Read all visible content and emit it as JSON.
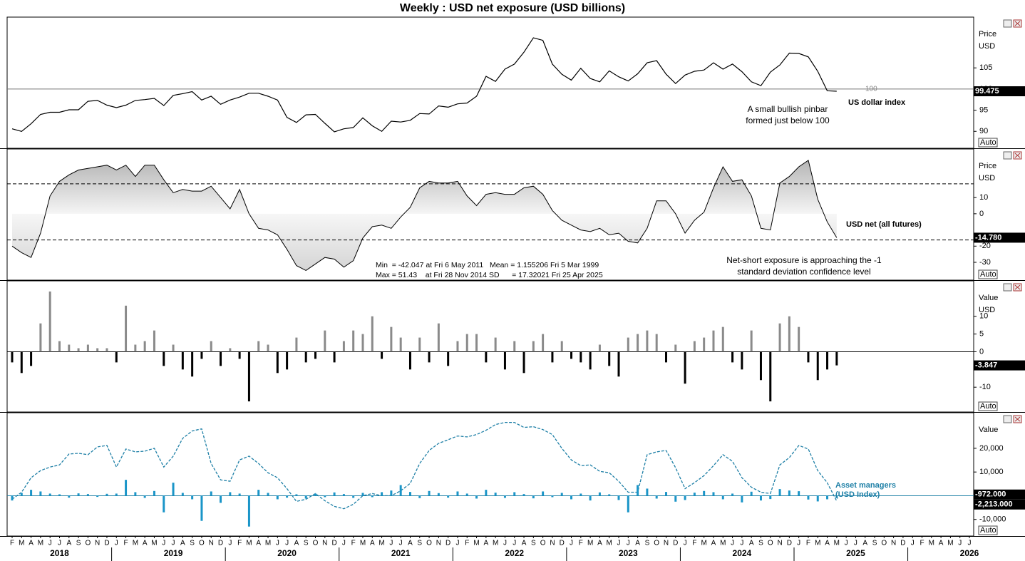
{
  "title": "Weekly : USD net exposure (USD billions)",
  "x_axis": {
    "xlim": [
      "2018-02",
      "2026-07"
    ],
    "x": [
      "2018-02",
      "2018-03",
      "2018-04",
      "2018-05",
      "2018-06",
      "2018-07",
      "2018-08",
      "2018-09",
      "2018-10",
      "2018-11",
      "2018-12",
      "2019-01",
      "2019-02",
      "2019-03",
      "2019-04",
      "2019-05",
      "2019-06",
      "2019-07",
      "2019-08",
      "2019-09",
      "2019-10",
      "2019-11",
      "2019-12",
      "2020-01",
      "2020-02",
      "2020-03",
      "2020-04",
      "2020-05",
      "2020-06",
      "2020-07",
      "2020-08",
      "2020-09",
      "2020-10",
      "2020-11",
      "2020-12",
      "2021-01",
      "2021-02",
      "2021-03",
      "2021-04",
      "2021-05",
      "2021-06",
      "2021-07",
      "2021-08",
      "2021-09",
      "2021-10",
      "2021-11",
      "2021-12",
      "2022-01",
      "2022-02",
      "2022-03",
      "2022-04",
      "2022-05",
      "2022-06",
      "2022-07",
      "2022-08",
      "2022-09",
      "2022-10",
      "2022-11",
      "2022-12",
      "2023-01",
      "2023-02",
      "2023-03",
      "2023-04",
      "2023-05",
      "2023-06",
      "2023-07",
      "2023-08",
      "2023-09",
      "2023-10",
      "2023-11",
      "2023-12",
      "2024-01",
      "2024-02",
      "2024-03",
      "2024-04",
      "2024-05",
      "2024-06",
      "2024-07",
      "2024-08",
      "2024-09",
      "2024-10",
      "2024-11",
      "2024-12",
      "2025-01",
      "2025-02",
      "2025-03",
      "2025-04",
      "2025-05"
    ],
    "xticks": [
      {
        "value": "2018-02",
        "label": "F"
      },
      {
        "value": "2018-03",
        "label": "M"
      },
      {
        "value": "2018-04",
        "label": "A"
      },
      {
        "value": "2018-05",
        "label": "M"
      },
      {
        "value": "2018-06",
        "label": "J"
      },
      {
        "value": "2018-07",
        "label": "J"
      },
      {
        "value": "2018-08",
        "label": "A"
      },
      {
        "value": "2018-09",
        "label": "S"
      },
      {
        "value": "2018-10",
        "label": "O"
      },
      {
        "value": "2018-11",
        "label": "N"
      },
      {
        "value": "2018-12",
        "label": "D"
      },
      {
        "value": "2019-01",
        "label": "J"
      },
      {
        "value": "2019-02",
        "label": "F"
      },
      {
        "value": "2019-03",
        "label": "M"
      },
      {
        "value": "2019-04",
        "label": "A"
      },
      {
        "value": "2019-05",
        "label": "M"
      },
      {
        "value": "2019-06",
        "label": "J"
      },
      {
        "value": "2019-07",
        "label": "J"
      },
      {
        "value": "2019-08",
        "label": "A"
      },
      {
        "value": "2019-09",
        "label": "S"
      },
      {
        "value": "2019-10",
        "label": "O"
      },
      {
        "value": "2019-11",
        "label": "N"
      },
      {
        "value": "2019-12",
        "label": "D"
      },
      {
        "value": "2020-01",
        "label": "J"
      },
      {
        "value": "2020-02",
        "label": "F"
      },
      {
        "value": "2020-03",
        "label": "M"
      },
      {
        "value": "2020-04",
        "label": "A"
      },
      {
        "value": "2020-05",
        "label": "M"
      },
      {
        "value": "2020-06",
        "label": "J"
      },
      {
        "value": "2020-07",
        "label": "J"
      },
      {
        "value": "2020-08",
        "label": "A"
      },
      {
        "value": "2020-09",
        "label": "S"
      },
      {
        "value": "2020-10",
        "label": "O"
      },
      {
        "value": "2020-11",
        "label": "N"
      },
      {
        "value": "2020-12",
        "label": "D"
      },
      {
        "value": "2021-01",
        "label": "J"
      },
      {
        "value": "2021-02",
        "label": "F"
      },
      {
        "value": "2021-03",
        "label": "M"
      },
      {
        "value": "2021-04",
        "label": "A"
      },
      {
        "value": "2021-05",
        "label": "M"
      },
      {
        "value": "2021-06",
        "label": "J"
      },
      {
        "value": "2021-07",
        "label": "J"
      },
      {
        "value": "2021-08",
        "label": "A"
      },
      {
        "value": "2021-09",
        "label": "S"
      },
      {
        "value": "2021-10",
        "label": "O"
      },
      {
        "value": "2021-11",
        "label": "N"
      },
      {
        "value": "2021-12",
        "label": "D"
      },
      {
        "value": "2022-01",
        "label": "J"
      },
      {
        "value": "2022-02",
        "label": "F"
      },
      {
        "value": "2022-03",
        "label": "M"
      },
      {
        "value": "2022-04",
        "label": "A"
      },
      {
        "value": "2022-05",
        "label": "M"
      },
      {
        "value": "2022-06",
        "label": "J"
      },
      {
        "value": "2022-07",
        "label": "J"
      },
      {
        "value": "2022-08",
        "label": "A"
      },
      {
        "value": "2022-09",
        "label": "S"
      },
      {
        "value": "2022-10",
        "label": "O"
      },
      {
        "value": "2022-11",
        "label": "N"
      },
      {
        "value": "2022-12",
        "label": "D"
      },
      {
        "value": "2023-01",
        "label": "J"
      },
      {
        "value": "2023-02",
        "label": "F"
      },
      {
        "value": "2023-03",
        "label": "M"
      },
      {
        "value": "2023-04",
        "label": "A"
      },
      {
        "value": "2023-05",
        "label": "M"
      },
      {
        "value": "2023-06",
        "label": "J"
      },
      {
        "value": "2023-07",
        "label": "J"
      },
      {
        "value": "2023-08",
        "label": "A"
      },
      {
        "value": "2023-09",
        "label": "S"
      },
      {
        "value": "2023-10",
        "label": "O"
      },
      {
        "value": "2023-11",
        "label": "N"
      },
      {
        "value": "2023-12",
        "label": "D"
      },
      {
        "value": "2024-01",
        "label": "J"
      },
      {
        "value": "2024-02",
        "label": "F"
      },
      {
        "value": "2024-03",
        "label": "M"
      },
      {
        "value": "2024-04",
        "label": "A"
      },
      {
        "value": "2024-05",
        "label": "M"
      },
      {
        "value": "2024-06",
        "label": "J"
      },
      {
        "value": "2024-07",
        "label": "J"
      },
      {
        "value": "2024-08",
        "label": "A"
      },
      {
        "value": "2024-09",
        "label": "S"
      },
      {
        "value": "2024-10",
        "label": "O"
      },
      {
        "value": "2024-11",
        "label": "N"
      },
      {
        "value": "2024-12",
        "label": "D"
      },
      {
        "value": "2025-01",
        "label": "J"
      },
      {
        "value": "2025-02",
        "label": "F"
      },
      {
        "value": "2025-03",
        "label": "M"
      },
      {
        "value": "2025-04",
        "label": "A"
      },
      {
        "value": "2025-05",
        "label": "M"
      },
      {
        "value": "2025-06",
        "label": "J"
      },
      {
        "value": "2025-07",
        "label": "J"
      },
      {
        "value": "2025-08",
        "label": "A"
      },
      {
        "value": "2025-09",
        "label": "S"
      },
      {
        "value": "2025-10",
        "label": "O"
      },
      {
        "value": "2025-11",
        "label": "N"
      },
      {
        "value": "2025-12",
        "label": "D"
      },
      {
        "value": "2026-01",
        "label": "J"
      },
      {
        "value": "2026-02",
        "label": "F"
      },
      {
        "value": "2026-03",
        "label": "M"
      },
      {
        "value": "2026-04",
        "label": "A"
      },
      {
        "value": "2026-05",
        "label": "M"
      },
      {
        "value": "2026-06",
        "label": "J"
      },
      {
        "value": "2026-07",
        "label": "J"
      }
    ],
    "years": [
      "2018",
      "2019",
      "2020",
      "2021",
      "2022",
      "2023",
      "2024",
      "2025",
      "2026"
    ]
  },
  "chart_data": [
    {
      "type": "line",
      "name": "US dollar index",
      "color": "#000000",
      "axis_header": [
        "Price",
        "USD"
      ],
      "auto_button": "Auto",
      "ylim": [
        86,
        117
      ],
      "yticks": [
        90,
        95,
        100,
        105
      ],
      "reference_line": 100,
      "annotation": "A small bullish pinbar formed just below 100",
      "values": [
        90.6,
        90.0,
        91.8,
        94.0,
        94.5,
        94.5,
        95.1,
        95.1,
        97.1,
        97.3,
        96.2,
        95.6,
        96.2,
        97.3,
        97.5,
        97.8,
        96.1,
        98.5,
        98.9,
        99.4,
        97.4,
        98.3,
        96.4,
        97.4,
        98.1,
        99.0,
        99.0,
        98.3,
        97.4,
        93.3,
        92.1,
        93.9,
        94.0,
        91.9,
        89.9,
        90.6,
        90.9,
        93.2,
        91.3,
        90.0,
        92.4,
        92.2,
        92.6,
        94.2,
        94.1,
        96.0,
        95.7,
        96.5,
        96.7,
        98.3,
        103.0,
        101.8,
        104.7,
        105.9,
        108.7,
        112.1,
        111.5,
        105.9,
        103.5,
        102.1,
        104.9,
        102.5,
        101.7,
        104.3,
        102.9,
        101.9,
        103.6,
        106.2,
        106.7,
        103.5,
        101.3,
        103.3,
        104.2,
        104.5,
        106.2,
        104.7,
        105.9,
        104.1,
        101.7,
        100.8,
        104.0,
        105.7,
        108.5,
        108.4,
        107.6,
        104.2,
        99.6,
        99.475
      ]
    },
    {
      "type": "area",
      "name": "USD net (all futures)",
      "color": "#000000",
      "axis_header": [
        "Price",
        "USD"
      ],
      "auto_button": "Auto",
      "ylim": [
        -41,
        40
      ],
      "yticks": [
        10,
        0,
        -20,
        -30
      ],
      "dashed_lines": [
        18.48,
        -16.17
      ],
      "stats": [
        "Min  = -42.047 at Fri 6 May 2011   Mean = 1.155206 Fri 5 Mar 1999",
        "Max = 51.43    at Fri 28 Nov 2014 SD      = 17.32021 Fri 25 Apr 2025"
      ],
      "annotation": "Net-short exposure is approaching the -1 standard deviation confidence level",
      "last_value_label": "-14.780",
      "values": [
        -20,
        -24,
        -27,
        -12,
        11,
        20,
        24,
        27,
        28,
        29,
        30,
        27,
        30,
        23,
        30,
        30,
        21,
        13,
        15,
        14,
        14,
        17,
        10,
        3,
        15,
        0,
        -9,
        -10,
        -13,
        -22,
        -32,
        -35,
        -31,
        -27,
        -28,
        -33,
        -29,
        -15,
        -8,
        -7,
        -9,
        -2,
        4,
        16,
        20,
        19,
        19,
        20,
        11,
        5,
        12,
        13,
        12,
        12,
        16,
        17,
        12,
        2,
        -4,
        -7,
        -10,
        -11,
        -9,
        -13,
        -12,
        -17,
        -18,
        -9,
        8,
        8,
        0,
        -12,
        -4,
        1,
        16,
        29,
        20,
        21,
        11,
        -9,
        -10,
        19,
        23,
        29,
        33,
        9,
        -5,
        -14.78
      ]
    },
    {
      "type": "bar",
      "positive_color": "#8a8a8a",
      "negative_color": "#000000",
      "zero_line": true,
      "axis_header": [
        "Value",
        "USD"
      ],
      "auto_button": "Auto",
      "ylim": [
        -17,
        20
      ],
      "yticks": [
        10,
        5,
        0,
        -10
      ],
      "values": [
        -3,
        -6,
        -4,
        8,
        17,
        3,
        2,
        1,
        2,
        1,
        1,
        -3,
        13,
        2,
        3,
        6,
        -4,
        2,
        -5,
        -7,
        -2,
        3,
        -4,
        1,
        -2,
        -14,
        3,
        2,
        -6,
        -5,
        4,
        -3,
        -2,
        6,
        -3,
        3,
        6,
        5,
        10,
        -2,
        7,
        4,
        -5,
        4,
        -3,
        8,
        -4,
        3,
        5,
        5,
        -3,
        4,
        -5,
        3,
        -6,
        3,
        5,
        -3,
        3,
        -2,
        -3,
        -5,
        2,
        -4,
        -7,
        4,
        5,
        6,
        5,
        -3,
        2,
        -9,
        3,
        4,
        6,
        7,
        -3,
        -5,
        6,
        -8,
        -14,
        8,
        10,
        7,
        -3,
        -8,
        -5,
        -3.847
      ]
    },
    {
      "type": "combo",
      "zero_line": true,
      "axis_header": [
        "Value"
      ],
      "auto_button": "Auto",
      "ylim": [
        -17000,
        35000
      ],
      "yticks": [
        {
          "value": 20000,
          "label": "20,000"
        },
        {
          "value": 10000,
          "label": "10,000"
        },
        {
          "value": -10000,
          "label": "-10,000"
        }
      ],
      "series": [
        {
          "name": "Asset managers (USD Index)",
          "kind": "line",
          "style": "dashed",
          "color": "#1d7fa6",
          "last_value_label": "-2,213.000",
          "values": [
            -1500,
            1500,
            7600,
            10600,
            12100,
            13000,
            17600,
            17900,
            17300,
            20600,
            21200,
            12100,
            19700,
            18500,
            18800,
            20000,
            12100,
            16700,
            24200,
            27300,
            28200,
            13600,
            6700,
            6100,
            15100,
            16700,
            13600,
            9700,
            7600,
            3000,
            -2400,
            -1500,
            900,
            -2100,
            -4500,
            -5500,
            -3600,
            0,
            900,
            0,
            0,
            2100,
            5200,
            13600,
            19100,
            22100,
            23600,
            25200,
            24800,
            25800,
            27600,
            30000,
            30900,
            30900,
            28800,
            29100,
            27900,
            25800,
            20000,
            15100,
            12700,
            13000,
            10300,
            9700,
            6100,
            1500,
            1500,
            17300,
            18500,
            19100,
            11800,
            3000,
            5500,
            8500,
            12700,
            17300,
            14500,
            7600,
            3600,
            1500,
            900,
            13000,
            16100,
            21200,
            19700,
            10600,
            5500,
            -2213
          ]
        },
        {
          "kind": "bar",
          "color": "#1a95c8",
          "last_value_label": "-972.000",
          "values": [
            -2000,
            1200,
            2500,
            1800,
            900,
            600,
            -800,
            1000,
            700,
            -500,
            800,
            900,
            6700,
            1500,
            -900,
            2000,
            -7000,
            5500,
            1200,
            -1500,
            -10600,
            1800,
            -3000,
            1500,
            900,
            -13000,
            2500,
            1200,
            -1500,
            -800,
            600,
            -1200,
            900,
            -600,
            1400,
            700,
            -900,
            1200,
            -600,
            1500,
            2200,
            4500,
            1600,
            -1000,
            2000,
            1100,
            -800,
            1800,
            900,
            -1200,
            2500,
            1300,
            -900,
            1500,
            700,
            -1100,
            1800,
            -600,
            1200,
            -1500,
            900,
            -2000,
            1400,
            600,
            -1800,
            -7000,
            4500,
            3000,
            -1200,
            1600,
            -2500,
            -1800,
            1300,
            2000,
            1500,
            -1500,
            900,
            -2800,
            1700,
            -2000,
            -1400,
            2800,
            2200,
            1900,
            -1600,
            -2400,
            -1500,
            -972
          ]
        }
      ]
    }
  ]
}
